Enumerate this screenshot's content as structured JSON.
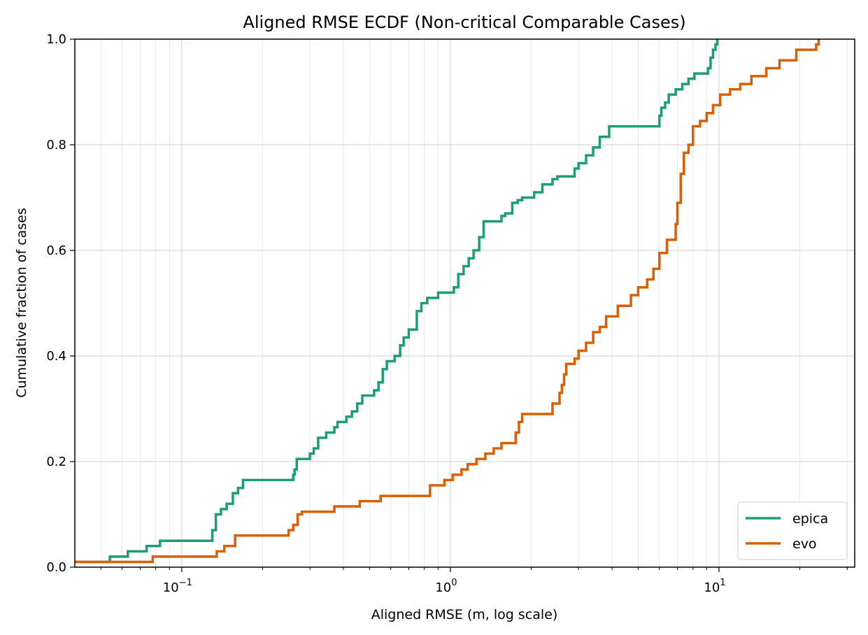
{
  "chart_data": {
    "type": "line",
    "title": "Aligned RMSE ECDF (Non-critical Comparable Cases)",
    "xlabel": "Aligned RMSE (m, log scale)",
    "ylabel": "Cumulative fraction of cases",
    "x_scale": "log",
    "xlim": [
      0.04,
      32
    ],
    "ylim": [
      0,
      1
    ],
    "x_ticks": [
      {
        "value": 0.1,
        "base": "10",
        "exp": "−1"
      },
      {
        "value": 1,
        "base": "10",
        "exp": "0"
      },
      {
        "value": 10,
        "base": "10",
        "exp": "1"
      }
    ],
    "y_ticks": [
      {
        "value": 0,
        "label": "0.0"
      },
      {
        "value": 0.2,
        "label": "0.2"
      },
      {
        "value": 0.4,
        "label": "0.4"
      },
      {
        "value": 0.6,
        "label": "0.6"
      },
      {
        "value": 0.8,
        "label": "0.8"
      },
      {
        "value": 1,
        "label": "1.0"
      }
    ],
    "grid": true,
    "legend_position": "bottom-right",
    "step": "post",
    "series": [
      {
        "name": "epica",
        "color": "#1b9e77",
        "x": [
          0.04,
          0.054,
          0.063,
          0.074,
          0.083,
          0.13,
          0.134,
          0.14,
          0.147,
          0.155,
          0.162,
          0.169,
          0.26,
          0.263,
          0.268,
          0.272,
          0.3,
          0.31,
          0.322,
          0.345,
          0.37,
          0.38,
          0.41,
          0.43,
          0.45,
          0.47,
          0.52,
          0.54,
          0.56,
          0.58,
          0.62,
          0.65,
          0.67,
          0.7,
          0.75,
          0.78,
          0.82,
          0.9,
          1.03,
          1.07,
          1.12,
          1.17,
          1.22,
          1.28,
          1.33,
          1.55,
          1.6,
          1.7,
          1.78,
          1.85,
          2.05,
          2.2,
          2.4,
          2.5,
          2.9,
          3.0,
          3.2,
          3.4,
          3.6,
          3.9,
          6.0,
          6.1,
          6.3,
          6.5,
          6.9,
          7.3,
          7.7,
          8.1,
          9.1,
          9.3,
          9.5,
          9.7,
          9.85
        ],
        "y": [
          0.01,
          0.02,
          0.03,
          0.04,
          0.05,
          0.07,
          0.1,
          0.11,
          0.12,
          0.14,
          0.15,
          0.165,
          0.175,
          0.185,
          0.205,
          0.205,
          0.215,
          0.225,
          0.245,
          0.255,
          0.265,
          0.275,
          0.285,
          0.295,
          0.31,
          0.325,
          0.335,
          0.35,
          0.375,
          0.39,
          0.4,
          0.42,
          0.435,
          0.45,
          0.485,
          0.5,
          0.51,
          0.52,
          0.53,
          0.555,
          0.57,
          0.585,
          0.6,
          0.625,
          0.655,
          0.665,
          0.67,
          0.69,
          0.695,
          0.7,
          0.71,
          0.725,
          0.735,
          0.74,
          0.755,
          0.765,
          0.78,
          0.795,
          0.815,
          0.835,
          0.855,
          0.87,
          0.88,
          0.895,
          0.905,
          0.915,
          0.925,
          0.935,
          0.945,
          0.965,
          0.98,
          0.99,
          1.0
        ],
        "x_end": 9.85
      },
      {
        "name": "evo",
        "color": "#d95f02",
        "x": [
          0.04,
          0.055,
          0.078,
          0.135,
          0.144,
          0.158,
          0.168,
          0.25,
          0.26,
          0.27,
          0.28,
          0.37,
          0.46,
          0.55,
          0.84,
          0.95,
          1.02,
          1.1,
          1.16,
          1.25,
          1.35,
          1.45,
          1.55,
          1.75,
          1.8,
          1.85,
          1.95,
          2.4,
          2.55,
          2.6,
          2.65,
          2.7,
          2.9,
          3.0,
          3.2,
          3.4,
          3.6,
          3.8,
          4.2,
          4.7,
          5.0,
          5.4,
          5.7,
          6.0,
          6.4,
          6.9,
          7.0,
          7.2,
          7.4,
          7.7,
          8.0,
          8.5,
          9.0,
          9.5,
          10.1,
          11.0,
          12.0,
          13.2,
          15.0,
          16.8,
          19.4,
          23.0,
          23.5
        ],
        "y": [
          0.01,
          0.01,
          0.02,
          0.03,
          0.04,
          0.06,
          0.06,
          0.07,
          0.08,
          0.1,
          0.105,
          0.115,
          0.125,
          0.135,
          0.155,
          0.165,
          0.175,
          0.185,
          0.195,
          0.205,
          0.215,
          0.225,
          0.235,
          0.255,
          0.275,
          0.29,
          0.29,
          0.31,
          0.33,
          0.345,
          0.365,
          0.385,
          0.395,
          0.41,
          0.425,
          0.445,
          0.455,
          0.475,
          0.495,
          0.515,
          0.53,
          0.545,
          0.565,
          0.595,
          0.62,
          0.65,
          0.69,
          0.745,
          0.785,
          0.8,
          0.835,
          0.845,
          0.86,
          0.875,
          0.895,
          0.905,
          0.915,
          0.93,
          0.945,
          0.96,
          0.98,
          0.99,
          1.0
        ],
        "x_end": 23.5
      }
    ]
  }
}
